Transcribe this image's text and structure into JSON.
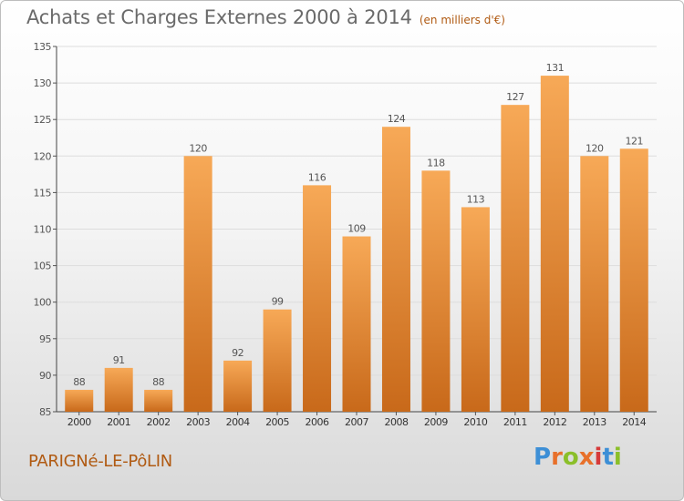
{
  "page": {
    "title": "Achats et Charges Externes 2000 à 2014",
    "subtitle": "(en milliers d'€)",
    "commune": "PARIGNé-LE-PôLIN",
    "brand": "Proxiti"
  },
  "colors": {
    "bar_light": "#f7a957",
    "bar_dark": "#c8691a",
    "text": "#555555",
    "accent": "#b05a12"
  },
  "chart_data": {
    "type": "bar",
    "title": "Achats et Charges Externes 2000 à 2014",
    "subtitle": "(en milliers d'€)",
    "xlabel": "",
    "ylabel": "",
    "categories": [
      "2000",
      "2001",
      "2002",
      "2003",
      "2004",
      "2005",
      "2006",
      "2007",
      "2008",
      "2009",
      "2010",
      "2011",
      "2012",
      "2013",
      "2014"
    ],
    "values": [
      88,
      91,
      88,
      120,
      92,
      99,
      116,
      109,
      124,
      118,
      113,
      127,
      131,
      120,
      121
    ],
    "ylim": [
      85,
      135
    ],
    "yticks": [
      85,
      90,
      95,
      100,
      105,
      110,
      115,
      120,
      125,
      130,
      135
    ],
    "grid": true,
    "data_labels": true
  }
}
